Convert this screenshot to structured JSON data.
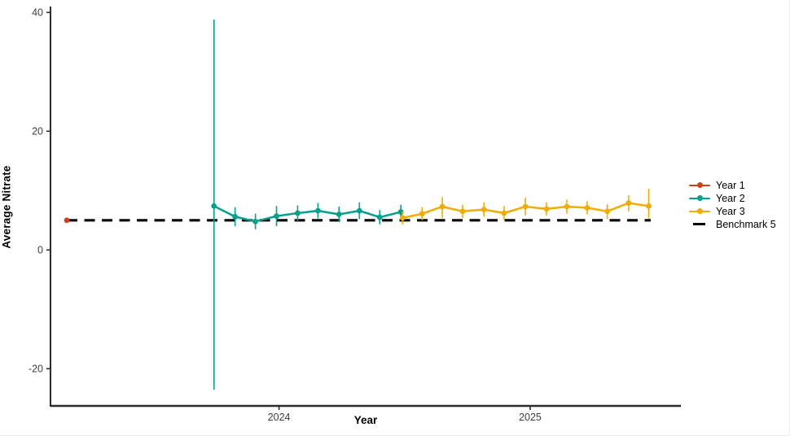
{
  "chart_data": {
    "type": "line",
    "title": "",
    "xlabel": "Year",
    "ylabel": "Average Nitrate",
    "grid": false,
    "legend_position": "right",
    "xlim": [
      2023.09,
      2025.6
    ],
    "ylim": [
      -26.4,
      41.0
    ],
    "x_ticks": [
      {
        "value": 2024,
        "label": "2024"
      },
      {
        "value": 2025,
        "label": "2025"
      }
    ],
    "y_ticks": [
      {
        "value": -20,
        "label": "-20"
      },
      {
        "value": 0,
        "label": "0"
      },
      {
        "value": 20,
        "label": "20"
      },
      {
        "value": 40,
        "label": "40"
      }
    ],
    "benchmark": {
      "label": "Benchmark 5",
      "value": 5,
      "color": "#000000",
      "style": "dashed",
      "x_start": 2023.155,
      "x_end": 2025.48
    },
    "series": [
      {
        "name": "Year 1",
        "color": "#CF4217",
        "points": [
          {
            "x": 2023.155,
            "y": 5.0,
            "ymin": 5.0,
            "ymax": 5.0
          }
        ]
      },
      {
        "name": "Year 2",
        "color": "#00A08A",
        "points": [
          {
            "x": 2023.741,
            "y": 7.4,
            "ymin": -23.5,
            "ymax": 38.8
          },
          {
            "x": 2023.825,
            "y": 5.6,
            "ymin": 4.0,
            "ymax": 7.2
          },
          {
            "x": 2023.906,
            "y": 4.8,
            "ymin": 3.5,
            "ymax": 6.1
          },
          {
            "x": 2023.99,
            "y": 5.7,
            "ymin": 4.0,
            "ymax": 7.4
          },
          {
            "x": 2024.074,
            "y": 6.2,
            "ymin": 4.9,
            "ymax": 7.5
          },
          {
            "x": 2024.155,
            "y": 6.6,
            "ymin": 5.3,
            "ymax": 7.9
          },
          {
            "x": 2024.239,
            "y": 6.0,
            "ymin": 4.7,
            "ymax": 7.3
          },
          {
            "x": 2024.32,
            "y": 6.6,
            "ymin": 5.2,
            "ymax": 8.0
          },
          {
            "x": 2024.401,
            "y": 5.5,
            "ymin": 4.3,
            "ymax": 6.7
          },
          {
            "x": 2024.485,
            "y": 6.4,
            "ymin": 5.2,
            "ymax": 7.6
          }
        ]
      },
      {
        "name": "Year 3",
        "color": "#F0AD00",
        "points": [
          {
            "x": 2024.492,
            "y": 5.4,
            "ymin": 4.3,
            "ymax": 6.5
          },
          {
            "x": 2024.57,
            "y": 6.1,
            "ymin": 5.0,
            "ymax": 7.2
          },
          {
            "x": 2024.65,
            "y": 7.3,
            "ymin": 5.4,
            "ymax": 8.9
          },
          {
            "x": 2024.731,
            "y": 6.5,
            "ymin": 5.4,
            "ymax": 7.6
          },
          {
            "x": 2024.816,
            "y": 6.8,
            "ymin": 5.6,
            "ymax": 8.0
          },
          {
            "x": 2024.896,
            "y": 6.2,
            "ymin": 5.1,
            "ymax": 7.4
          },
          {
            "x": 2024.981,
            "y": 7.3,
            "ymin": 5.8,
            "ymax": 8.8
          },
          {
            "x": 2025.065,
            "y": 6.9,
            "ymin": 5.8,
            "ymax": 8.0
          },
          {
            "x": 2025.146,
            "y": 7.3,
            "ymin": 6.1,
            "ymax": 8.5
          },
          {
            "x": 2025.227,
            "y": 7.1,
            "ymin": 6.0,
            "ymax": 8.2
          },
          {
            "x": 2025.307,
            "y": 6.5,
            "ymin": 5.2,
            "ymax": 7.7
          },
          {
            "x": 2025.392,
            "y": 7.9,
            "ymin": 6.5,
            "ymax": 9.2
          },
          {
            "x": 2025.472,
            "y": 7.4,
            "ymin": 5.3,
            "ymax": 10.3
          }
        ]
      }
    ]
  }
}
